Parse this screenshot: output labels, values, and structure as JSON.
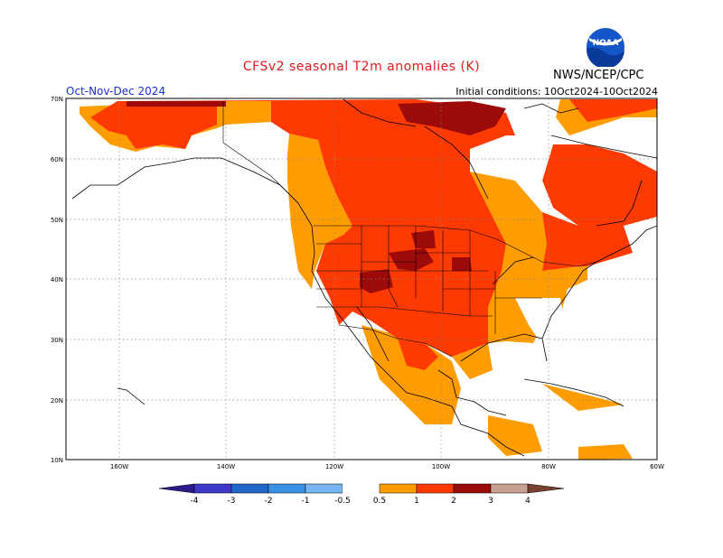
{
  "title": "CFSv2  seasonal  T2m  anomalies  (K)",
  "season": "Oct-Nov-Dec 2024",
  "initial_conditions": "Initial conditions: 10Oct2024-10Oct2024",
  "agency": "NWS/NCEP/CPC",
  "logo_text": "NOAA",
  "map": {
    "lat_labels": [
      "70N",
      "60N",
      "50N",
      "40N",
      "30N",
      "20N",
      "10N"
    ],
    "lon_labels": [
      "160W",
      "140W",
      "120W",
      "100W",
      "80W",
      "60W"
    ]
  },
  "legend": {
    "labels": [
      "-4",
      "-3",
      "-2",
      "-1",
      "-0.5",
      "0.5",
      "1",
      "2",
      "3",
      "4"
    ],
    "colors": {
      "lt_minus4": "#2a1a8c",
      "m4_m3": "#3c39c8",
      "m3_m2": "#2266cc",
      "m2_m1": "#3a8fe6",
      "m1_m05": "#77b6f2",
      "neutral": "#ffffff",
      "p05_p1": "#ff9c00",
      "p1_p2": "#ff3a00",
      "p2_p3": "#9c0a0a",
      "p3_p4": "#c8a090",
      "gt4": "#7a4030"
    }
  }
}
